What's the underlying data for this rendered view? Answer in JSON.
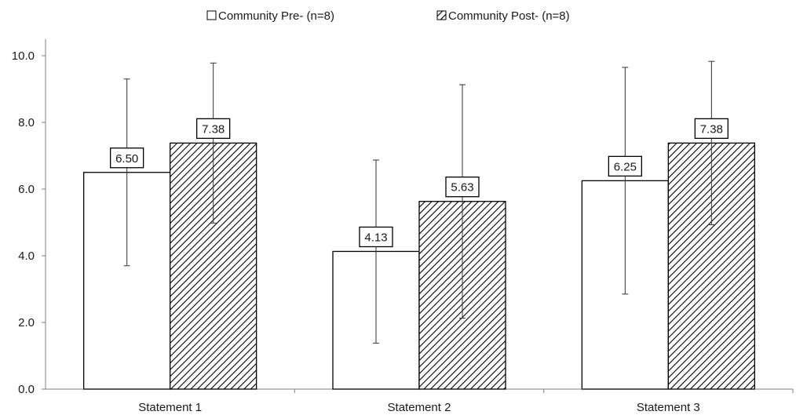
{
  "chart_data": {
    "type": "bar",
    "categories": [
      "Statement 1",
      "Statement 2",
      "Statement 3"
    ],
    "series": [
      {
        "name": "Community Pre- (n=8)",
        "values": [
          6.5,
          4.13,
          6.25
        ],
        "labels": [
          "6.50",
          "4.13",
          "6.25"
        ],
        "error_low": [
          3.7,
          1.38,
          2.85
        ],
        "error_high": [
          9.3,
          6.87,
          9.65
        ],
        "fill": "#ffffff",
        "pattern": "none"
      },
      {
        "name": "Community Post- (n=8)",
        "values": [
          7.38,
          5.63,
          7.38
        ],
        "labels": [
          "7.38",
          "5.63",
          "7.38"
        ],
        "error_low": [
          4.98,
          2.13,
          4.93
        ],
        "error_high": [
          9.78,
          9.13,
          9.83
        ],
        "fill": "#ffffff",
        "pattern": "diagonal-hatch"
      }
    ],
    "yticks": [
      "0.0",
      "2.0",
      "4.0",
      "6.0",
      "8.0",
      "10.0"
    ],
    "ylim": [
      0,
      10.5
    ],
    "grid": false,
    "legend_position": "top",
    "colors": {
      "stroke": "#000000",
      "hatch": "#000000",
      "text": "#1a1a1a",
      "axis": "#808080"
    }
  }
}
